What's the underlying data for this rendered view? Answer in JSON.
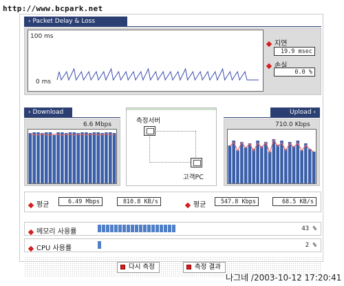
{
  "watermark_url": "http://www.bcpark.net",
  "delay_panel": {
    "title": "› Packet Delay & Loss",
    "y_max_label": "100 ms",
    "y_min_label": "0 ms",
    "latency_label": "지연",
    "latency_value": "19.9 msec",
    "loss_label": "손실",
    "loss_value": "0.0 %"
  },
  "download": {
    "title": "› Download",
    "peak_label": "6.6 Mbps",
    "avg_label": "평균",
    "avg_mbps": "6.49 Mbps",
    "avg_kbs": "810.8 KB/s"
  },
  "upload": {
    "title": "Upload ‹",
    "peak_label": "710.0 Kbps",
    "avg_label": "평균",
    "avg_kbps": "547.8 Kbps",
    "avg_kbs": "68.5 KB/s"
  },
  "topology": {
    "server_label": "측정서버",
    "client_label": "고객PC"
  },
  "memory": {
    "label": "메모리 사용률",
    "value": "43 %",
    "fraction": 0.43
  },
  "cpu": {
    "label": "CPU 사용률",
    "value": "2 %",
    "fraction": 0.02
  },
  "buttons": {
    "retest": "다시 측정",
    "results": "측정 결과"
  },
  "stamp": "나그네 /2003-10-12 17:20:41",
  "colors": {
    "tab_navy": "#2b3f72",
    "bar_blue": "#3a5ea8",
    "accent_red": "#d21f1f",
    "line_blue": "#3b4db0"
  }
}
